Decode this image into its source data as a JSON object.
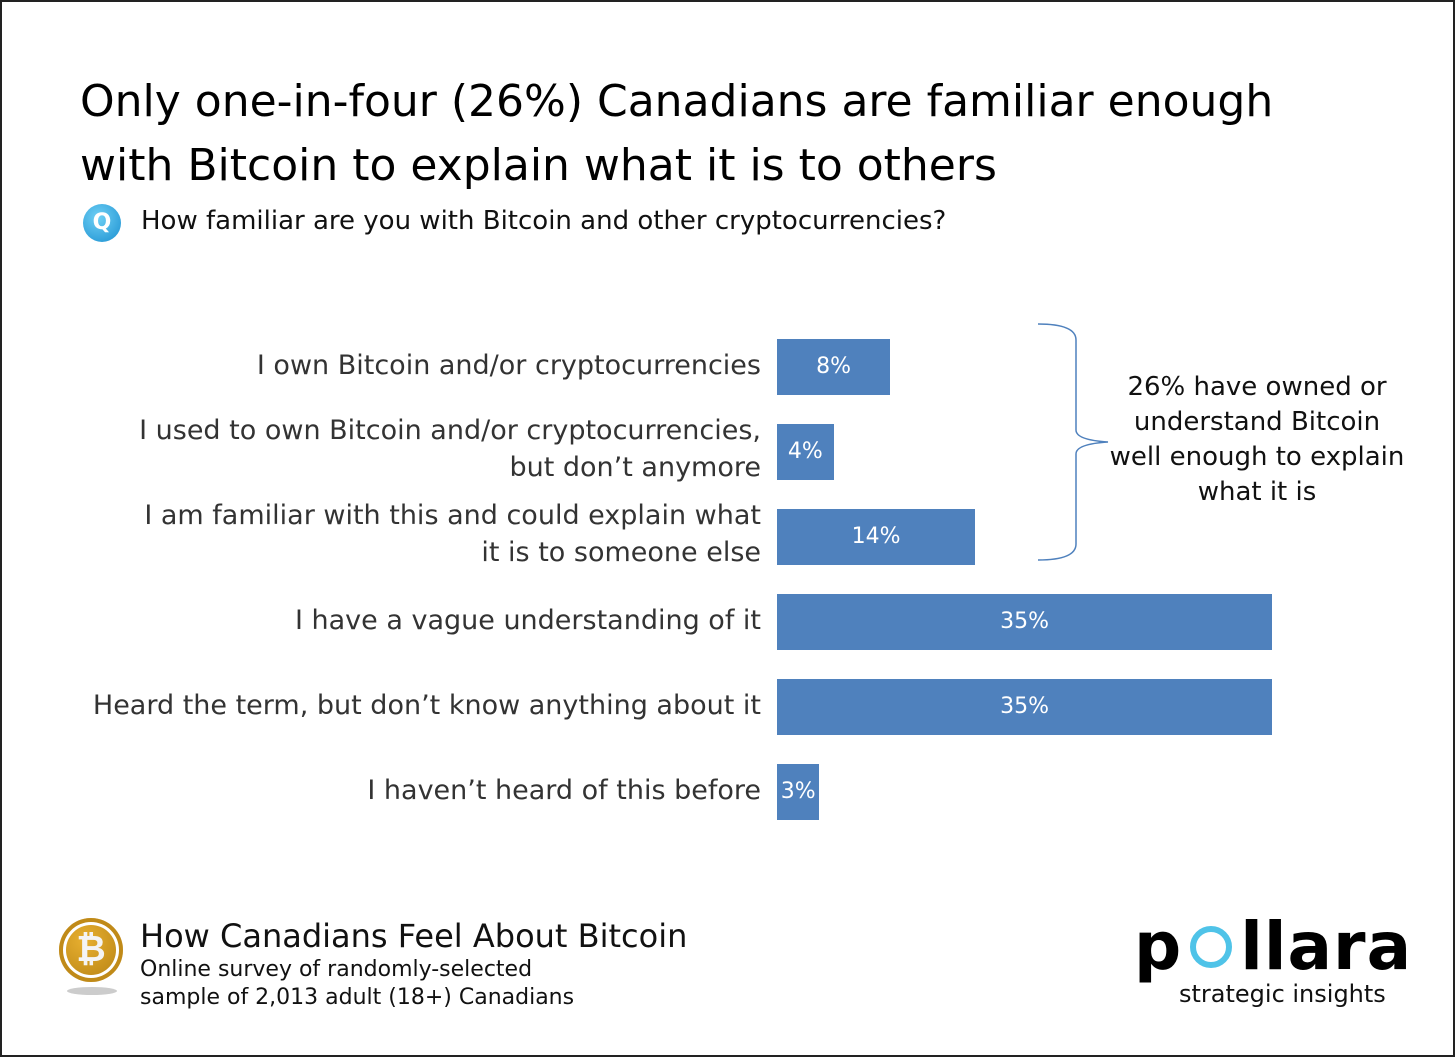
{
  "title": "Only one-in-four (26%) Canadians are familiar enough with Bitcoin to explain what it is to others",
  "question_icon": "Q",
  "question": "How familiar are you with Bitcoin and other cryptocurrencies?",
  "chart_data": {
    "type": "bar",
    "orientation": "horizontal",
    "categories": [
      "I own Bitcoin and/or cryptocurrencies",
      "I used to own Bitcoin and/or cryptocurrencies, but don’t anymore",
      "I am familiar with this and could explain what it is to someone else",
      "I have a vague understanding of it",
      "Heard the term, but don’t know anything about it",
      "I haven’t heard of this before"
    ],
    "values": [
      8,
      4,
      14,
      35,
      35,
      3
    ],
    "data_labels": [
      "8%",
      "4%",
      "14%",
      "35%",
      "35%",
      "3%"
    ],
    "bar_color": "#4f81bd",
    "grid": false,
    "annotation": "26% have owned or understand Bitcoin well enough to explain what it is"
  },
  "footer": {
    "title": "How Canadians Feel About Bitcoin",
    "subtitle": "Online survey of randomly-selected sample of 2,013 adult (18+) Canadians",
    "bitcoin_logo": "₿"
  },
  "brand": {
    "logo": "pollara",
    "tagline": "strategic insights",
    "accent": "#4fc3e8"
  }
}
